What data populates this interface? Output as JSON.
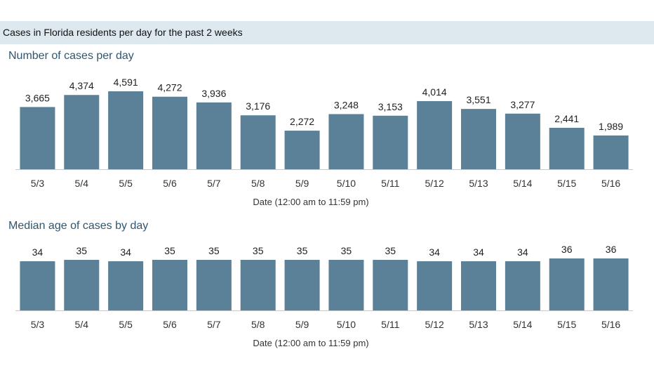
{
  "header": {
    "title": "Cases in Florida residents per day for the past 2 weeks"
  },
  "colors": {
    "bar": "#5b8198",
    "header_bg": "#dde8ef",
    "title": "#2f5670",
    "axis": "#c9c9c9"
  },
  "chart_data": [
    {
      "type": "bar",
      "title": "Number of cases per day",
      "xlabel": "Date (12:00 am to 11:59 pm)",
      "ylabel": "",
      "ylim": [
        0,
        4591
      ],
      "categories": [
        "5/3",
        "5/4",
        "5/5",
        "5/6",
        "5/7",
        "5/8",
        "5/9",
        "5/10",
        "5/11",
        "5/12",
        "5/13",
        "5/14",
        "5/15",
        "5/16"
      ],
      "values": [
        3665,
        4374,
        4591,
        4272,
        3936,
        3176,
        2272,
        3248,
        3153,
        4014,
        3551,
        3277,
        2441,
        1989
      ],
      "labels": [
        "3,665",
        "4,374",
        "4,591",
        "4,272",
        "3,936",
        "3,176",
        "2,272",
        "3,248",
        "3,153",
        "4,014",
        "3,551",
        "3,277",
        "2,441",
        "1,989"
      ]
    },
    {
      "type": "bar",
      "title": "Median age of cases by day",
      "xlabel": "Date (12:00 am to 11:59 pm)",
      "ylabel": "",
      "ylim": [
        0,
        36
      ],
      "categories": [
        "5/3",
        "5/4",
        "5/5",
        "5/6",
        "5/7",
        "5/8",
        "5/9",
        "5/10",
        "5/11",
        "5/12",
        "5/13",
        "5/14",
        "5/15",
        "5/16"
      ],
      "values": [
        34,
        35,
        34,
        35,
        35,
        35,
        35,
        35,
        35,
        34,
        34,
        34,
        36,
        36
      ],
      "labels": [
        "34",
        "35",
        "34",
        "35",
        "35",
        "35",
        "35",
        "35",
        "35",
        "34",
        "34",
        "34",
        "36",
        "36"
      ]
    }
  ]
}
